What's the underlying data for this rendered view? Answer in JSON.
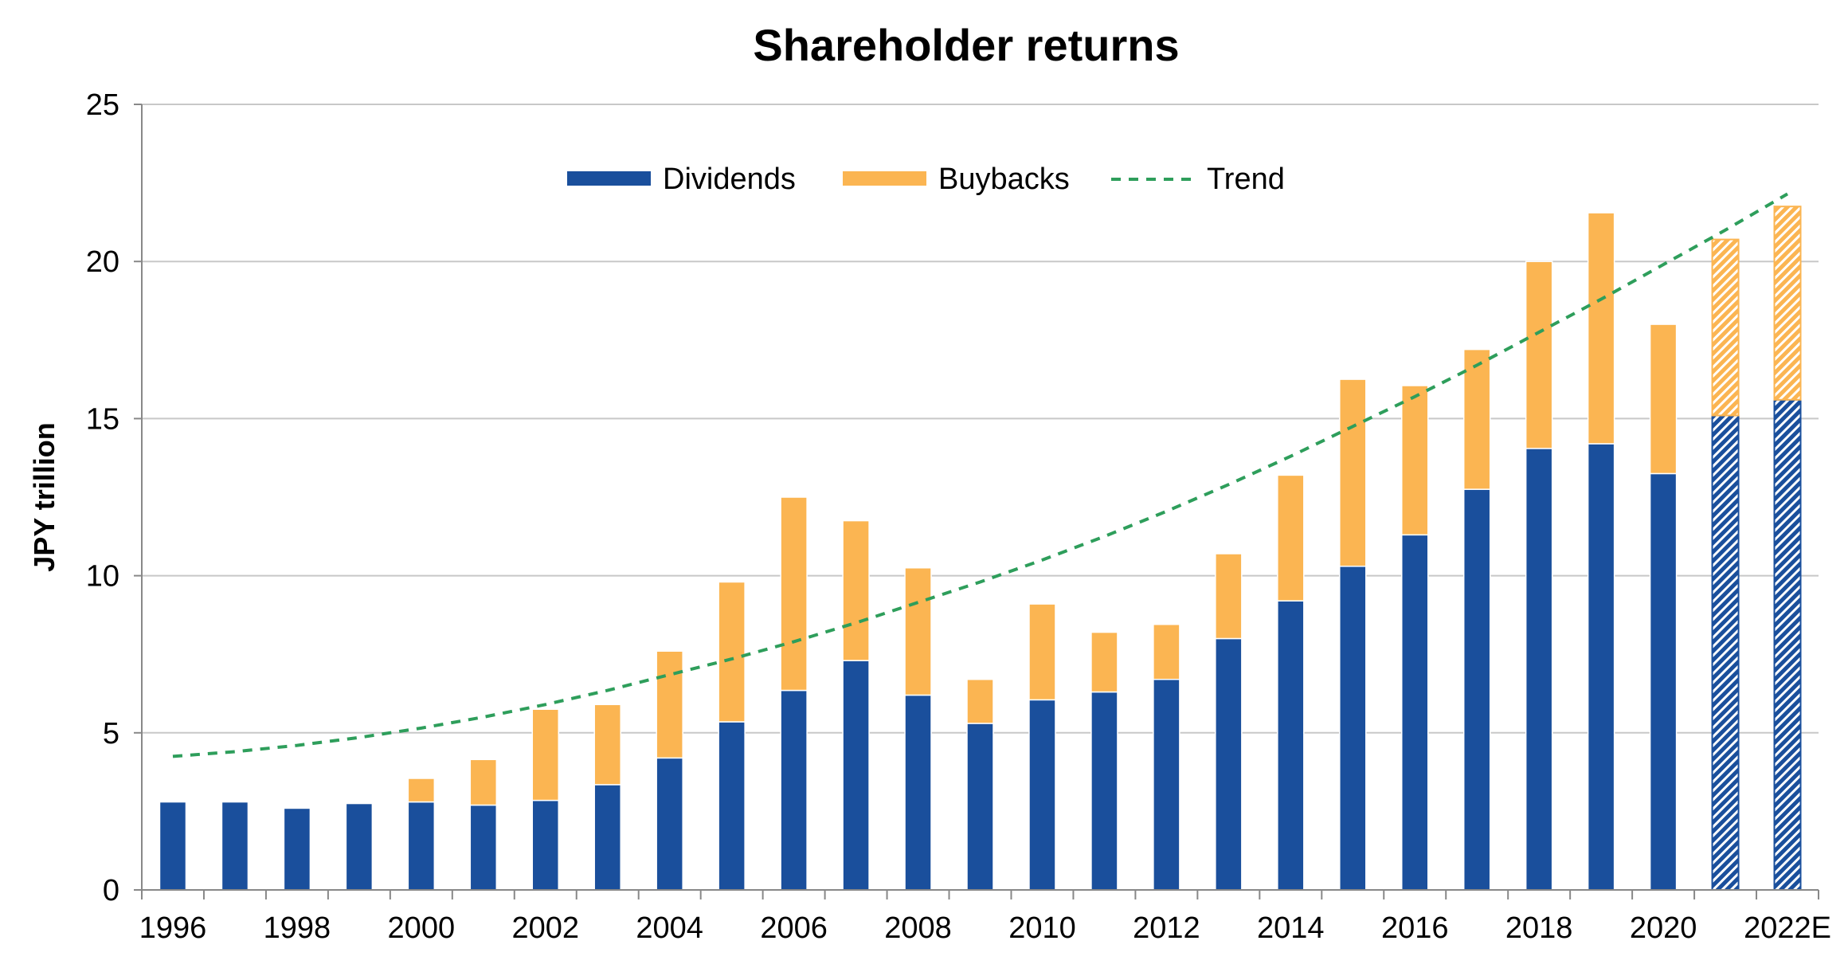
{
  "chart_data": {
    "type": "bar",
    "stacked": true,
    "title": "Shareholder returns",
    "xlabel": "",
    "ylabel": "JPY trillion",
    "ylim": [
      0,
      25
    ],
    "yticks": [
      0,
      5,
      10,
      15,
      20,
      25
    ],
    "grid": true,
    "legend_position": "top-center",
    "categories": [
      "1996",
      "1997",
      "1998",
      "1999",
      "2000",
      "2001",
      "2002",
      "2003",
      "2004",
      "2005",
      "2006",
      "2007",
      "2008",
      "2009",
      "2010",
      "2011",
      "2012",
      "2013",
      "2014",
      "2015",
      "2016",
      "2017",
      "2018",
      "2019",
      "2020",
      "2021",
      "2022E"
    ],
    "xtick_labels": [
      "1996",
      "",
      "1998",
      "",
      "2000",
      "",
      "2002",
      "",
      "2004",
      "",
      "2006",
      "",
      "2008",
      "",
      "2010",
      "",
      "2012",
      "",
      "2014",
      "",
      "2016",
      "",
      "2018",
      "",
      "2020",
      "",
      "2022E"
    ],
    "estimated_categories": [
      "2021",
      "2022E"
    ],
    "series": [
      {
        "name": "Dividends",
        "color": "#1a4f9c",
        "values": [
          2.8,
          2.8,
          2.6,
          2.75,
          2.8,
          2.7,
          2.85,
          3.35,
          4.2,
          5.35,
          6.35,
          7.3,
          6.2,
          5.3,
          6.05,
          6.3,
          6.7,
          8.0,
          9.2,
          10.3,
          11.3,
          12.75,
          14.05,
          14.2,
          13.25,
          15.1,
          15.6
        ]
      },
      {
        "name": "Buybacks",
        "color": "#fbb552",
        "values": [
          0,
          0,
          0,
          0,
          0.75,
          1.45,
          2.9,
          2.55,
          3.4,
          4.45,
          6.15,
          4.45,
          4.05,
          1.4,
          3.05,
          1.9,
          1.75,
          2.7,
          4.0,
          5.95,
          4.75,
          4.45,
          5.95,
          7.35,
          4.75,
          5.6,
          6.15
        ]
      },
      {
        "name": "Trend",
        "type": "line",
        "style": "dashed",
        "color": "#2e9e5b",
        "values": [
          4.25,
          4.4,
          4.6,
          4.85,
          5.15,
          5.5,
          5.9,
          6.35,
          6.85,
          7.35,
          7.9,
          8.5,
          9.15,
          9.8,
          10.5,
          11.25,
          12.05,
          12.9,
          13.8,
          14.75,
          15.7,
          16.7,
          17.75,
          18.8,
          19.9,
          21.0,
          22.15
        ]
      }
    ]
  }
}
